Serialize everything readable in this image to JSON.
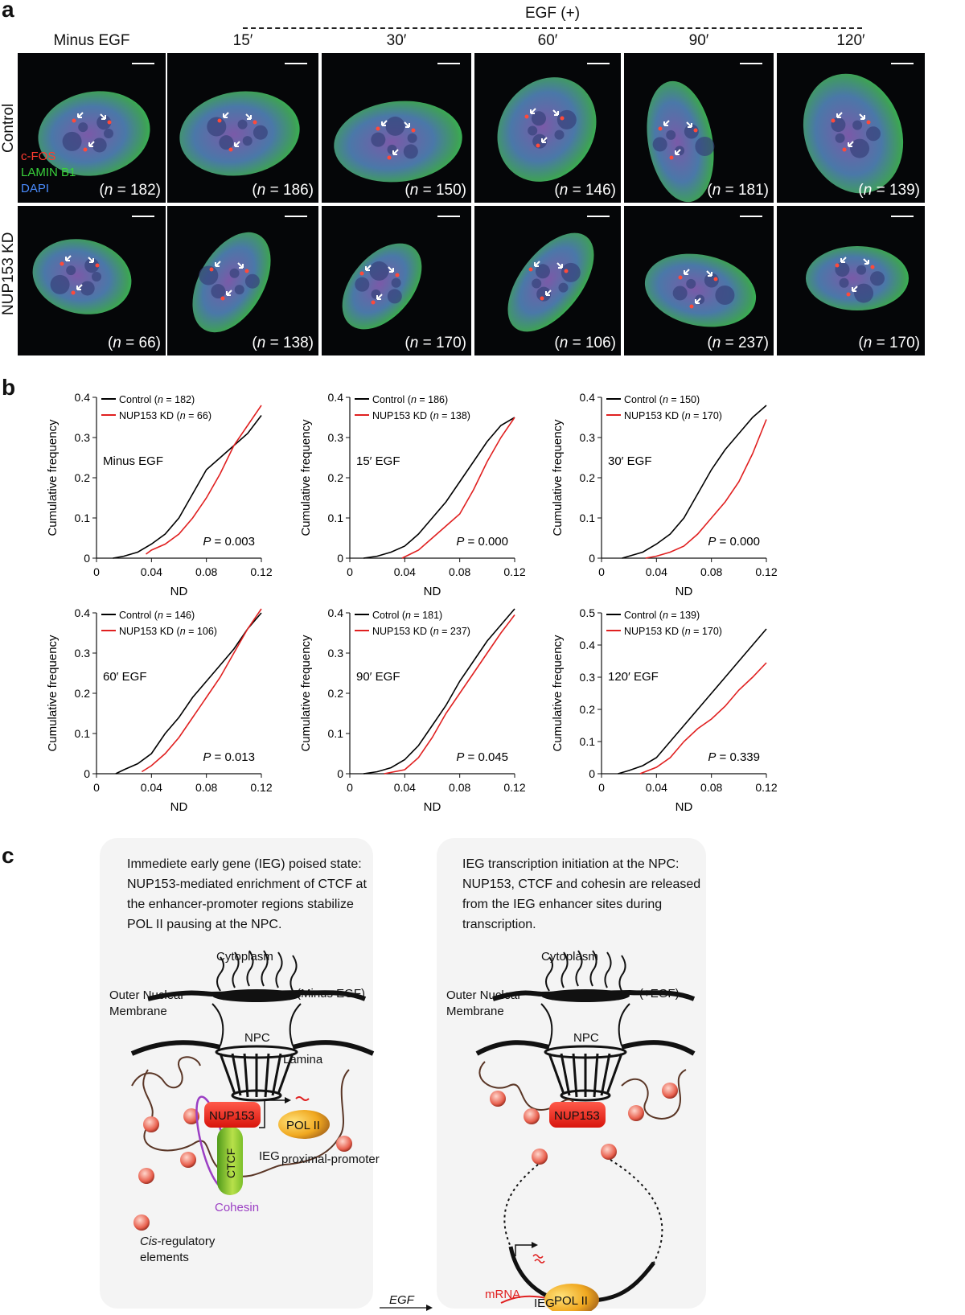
{
  "panel_a": {
    "letter": "a",
    "egf_header": "EGF (+)",
    "columns": [
      "Minus EGF",
      "15′",
      "30′",
      "60′",
      "90′",
      "120′"
    ],
    "row_labels": [
      "Control",
      "NUP153 KD"
    ],
    "legend": [
      {
        "label": "c-FOS",
        "color": "#ff3b30"
      },
      {
        "label": "LAMIN B1",
        "color": "#39d13b"
      },
      {
        "label": "DAPI",
        "color": "#4a8cff"
      }
    ],
    "counts": {
      "control": [
        "182",
        "186",
        "150",
        "146",
        "181",
        "139"
      ],
      "kd": [
        "66",
        "138",
        "170",
        "106",
        "237",
        "170"
      ]
    },
    "n_prefix": "(",
    "n_var": "n",
    "n_eq": " = ",
    "n_suffix": ")"
  },
  "panel_b": {
    "letter": "b"
  },
  "chart_data": [
    {
      "type": "line",
      "title": "Minus EGF",
      "xlabel": "ND",
      "ylabel": "Cumulative frequency",
      "xlim": [
        0,
        0.12
      ],
      "ylim": [
        0,
        0.4
      ],
      "xticks": [
        "0",
        "0.04",
        "0.08",
        "0.12"
      ],
      "yticks": [
        "0",
        "0.1",
        "0.2",
        "0.3",
        "0.4"
      ],
      "p_label": "P",
      "p_value": " = 0.003",
      "series": [
        {
          "name": "Control",
          "n": "182",
          "color": "#000000",
          "x": [
            0.012,
            0.02,
            0.03,
            0.04,
            0.05,
            0.06,
            0.07,
            0.08,
            0.09,
            0.1,
            0.11,
            0.12
          ],
          "y": [
            0.0,
            0.005,
            0.015,
            0.035,
            0.06,
            0.1,
            0.16,
            0.22,
            0.25,
            0.28,
            0.31,
            0.355
          ]
        },
        {
          "name": "NUP153 KD",
          "n": "66",
          "color": "#e02020",
          "x": [
            0.036,
            0.04,
            0.05,
            0.06,
            0.07,
            0.08,
            0.09,
            0.1,
            0.11,
            0.12
          ],
          "y": [
            0.01,
            0.02,
            0.035,
            0.06,
            0.1,
            0.15,
            0.21,
            0.28,
            0.33,
            0.38
          ]
        }
      ]
    },
    {
      "type": "line",
      "title": "15′ EGF",
      "xlabel": "ND",
      "ylabel": "Cumulative frequency",
      "xlim": [
        0,
        0.12
      ],
      "ylim": [
        0,
        0.4
      ],
      "xticks": [
        "0",
        "0.04",
        "0.08",
        "0.12"
      ],
      "yticks": [
        "0",
        "0.1",
        "0.2",
        "0.3",
        "0.4"
      ],
      "p_label": "P",
      "p_value": " = 0.000",
      "series": [
        {
          "name": "Control",
          "n": "186",
          "color": "#000000",
          "x": [
            0.01,
            0.02,
            0.03,
            0.04,
            0.05,
            0.06,
            0.07,
            0.08,
            0.09,
            0.1,
            0.11,
            0.12
          ],
          "y": [
            0.0,
            0.005,
            0.015,
            0.03,
            0.06,
            0.1,
            0.14,
            0.19,
            0.24,
            0.29,
            0.33,
            0.35
          ]
        },
        {
          "name": "NUP153 KD",
          "n": "138",
          "color": "#e02020",
          "x": [
            0.038,
            0.05,
            0.06,
            0.07,
            0.08,
            0.09,
            0.1,
            0.11,
            0.12
          ],
          "y": [
            0.0,
            0.02,
            0.05,
            0.08,
            0.11,
            0.17,
            0.24,
            0.3,
            0.35
          ]
        }
      ]
    },
    {
      "type": "line",
      "title": "30′ EGF",
      "xlabel": "ND",
      "ylabel": "Cumulative frequency",
      "xlim": [
        0,
        0.12
      ],
      "ylim": [
        0,
        0.4
      ],
      "xticks": [
        "0",
        "0.04",
        "0.08",
        "0.12"
      ],
      "yticks": [
        "0",
        "0.1",
        "0.2",
        "0.3",
        "0.4"
      ],
      "p_label": "P",
      "p_value": " = 0.000",
      "series": [
        {
          "name": "Control",
          "n": "150",
          "color": "#000000",
          "x": [
            0.015,
            0.02,
            0.03,
            0.04,
            0.05,
            0.06,
            0.07,
            0.08,
            0.09,
            0.1,
            0.11,
            0.12
          ],
          "y": [
            0.0,
            0.005,
            0.015,
            0.035,
            0.06,
            0.1,
            0.16,
            0.22,
            0.27,
            0.31,
            0.35,
            0.38
          ]
        },
        {
          "name": "NUP153 KD",
          "n": "170",
          "color": "#e02020",
          "x": [
            0.032,
            0.04,
            0.05,
            0.06,
            0.07,
            0.08,
            0.09,
            0.1,
            0.11,
            0.12
          ],
          "y": [
            0.0,
            0.005,
            0.015,
            0.03,
            0.06,
            0.1,
            0.14,
            0.19,
            0.26,
            0.345
          ]
        }
      ]
    },
    {
      "type": "line",
      "title": "60′ EGF",
      "xlabel": "ND",
      "ylabel": "Cumulative frequency",
      "xlim": [
        0,
        0.12
      ],
      "ylim": [
        0,
        0.4
      ],
      "xticks": [
        "0",
        "0.04",
        "0.08",
        "0.12"
      ],
      "yticks": [
        "0",
        "0.1",
        "0.2",
        "0.3",
        "0.4"
      ],
      "p_label": "P",
      "p_value": " = 0.013",
      "series": [
        {
          "name": "Control",
          "n": "146",
          "color": "#000000",
          "x": [
            0.014,
            0.02,
            0.03,
            0.04,
            0.05,
            0.06,
            0.07,
            0.08,
            0.09,
            0.1,
            0.11,
            0.12
          ],
          "y": [
            0.0,
            0.01,
            0.025,
            0.05,
            0.1,
            0.14,
            0.19,
            0.23,
            0.27,
            0.31,
            0.36,
            0.4
          ]
        },
        {
          "name": "NUP153 KD",
          "n": "106",
          "color": "#e02020",
          "x": [
            0.033,
            0.04,
            0.05,
            0.06,
            0.07,
            0.08,
            0.09,
            0.1,
            0.11,
            0.12
          ],
          "y": [
            0.005,
            0.02,
            0.05,
            0.09,
            0.14,
            0.19,
            0.24,
            0.3,
            0.36,
            0.41
          ]
        }
      ]
    },
    {
      "type": "line",
      "title": "90′ EGF",
      "xlabel": "ND",
      "ylabel": "Cumulative frequency",
      "xlim": [
        0,
        0.12
      ],
      "ylim": [
        0,
        0.4
      ],
      "xticks": [
        "0",
        "0.04",
        "0.08",
        "0.12"
      ],
      "yticks": [
        "0",
        "0.1",
        "0.2",
        "0.3",
        "0.4"
      ],
      "p_label": "P",
      "p_value": " = 0.045",
      "series": [
        {
          "name": "Cotrol",
          "n": "181",
          "color": "#000000",
          "x": [
            0.01,
            0.02,
            0.03,
            0.04,
            0.05,
            0.06,
            0.07,
            0.08,
            0.09,
            0.1,
            0.11,
            0.12
          ],
          "y": [
            0.0,
            0.005,
            0.015,
            0.035,
            0.07,
            0.12,
            0.17,
            0.23,
            0.28,
            0.33,
            0.37,
            0.41
          ]
        },
        {
          "name": "NUP153 KD",
          "n": "237",
          "color": "#e02020",
          "x": [
            0.025,
            0.04,
            0.05,
            0.06,
            0.07,
            0.08,
            0.09,
            0.1,
            0.11,
            0.12
          ],
          "y": [
            0.0,
            0.01,
            0.04,
            0.09,
            0.15,
            0.2,
            0.25,
            0.3,
            0.35,
            0.395
          ]
        }
      ]
    },
    {
      "type": "line",
      "title": "120′ EGF",
      "xlabel": "ND",
      "ylabel": "Cumulative frequency",
      "xlim": [
        0,
        0.12
      ],
      "ylim": [
        0,
        0.5
      ],
      "xticks": [
        "0",
        "0.04",
        "0.08",
        "0.12"
      ],
      "yticks": [
        "0",
        "0.1",
        "0.2",
        "0.3",
        "0.4",
        "0.5"
      ],
      "p_label": "P",
      "p_value": " = 0.339",
      "series": [
        {
          "name": "Control",
          "n": "139",
          "color": "#000000",
          "x": [
            0.012,
            0.02,
            0.03,
            0.04,
            0.05,
            0.06,
            0.07,
            0.08,
            0.09,
            0.1,
            0.11,
            0.12
          ],
          "y": [
            0.0,
            0.01,
            0.025,
            0.05,
            0.1,
            0.15,
            0.2,
            0.25,
            0.3,
            0.35,
            0.4,
            0.45
          ]
        },
        {
          "name": "NUP153 KD",
          "n": "170",
          "color": "#e02020",
          "x": [
            0.028,
            0.04,
            0.05,
            0.06,
            0.07,
            0.08,
            0.09,
            0.1,
            0.11,
            0.12
          ],
          "y": [
            0.0,
            0.02,
            0.05,
            0.1,
            0.14,
            0.17,
            0.21,
            0.26,
            0.3,
            0.345
          ]
        }
      ]
    }
  ],
  "panel_c": {
    "letter": "c",
    "left_text": [
      "Immediete early gene (IEG) poised state:",
      "NUP153-mediated enrichment of CTCF at",
      "the enhancer-promoter regions stabilize",
      "POL II pausing at the NPC."
    ],
    "right_text": [
      "IEG transcription initiation at the NPC:",
      "NUP153, CTCF and cohesin are released",
      "from the IEG enhancer sites during",
      "transcription."
    ],
    "left": {
      "cytoplasm": "Cytoplasm",
      "state": "(Minus EGF)",
      "onm_1": "Outer Nuclear",
      "onm_2": "Membrane",
      "npc": "NPC",
      "lamina": "Lamina",
      "nup153": "NUP153",
      "ctcf": "CTCF",
      "pol2": "POL II",
      "ieg": "IEG",
      "promoter": "proximal-promoter",
      "cohesin": "Cohesin",
      "cis_1_italic": "Cis",
      "cis_1_rest": "-regulatory",
      "cis_2": "elements"
    },
    "arrow_label": "EGF",
    "right": {
      "cytoplasm": "Cytoplasm",
      "state": "(+EGF)",
      "onm_1": "Outer Nuclear",
      "onm_2": "Membrane",
      "npc": "NPC",
      "nup153": "NUP153",
      "pol2": "POL II",
      "ieg": "IEG",
      "mrna": "mRNA"
    }
  }
}
